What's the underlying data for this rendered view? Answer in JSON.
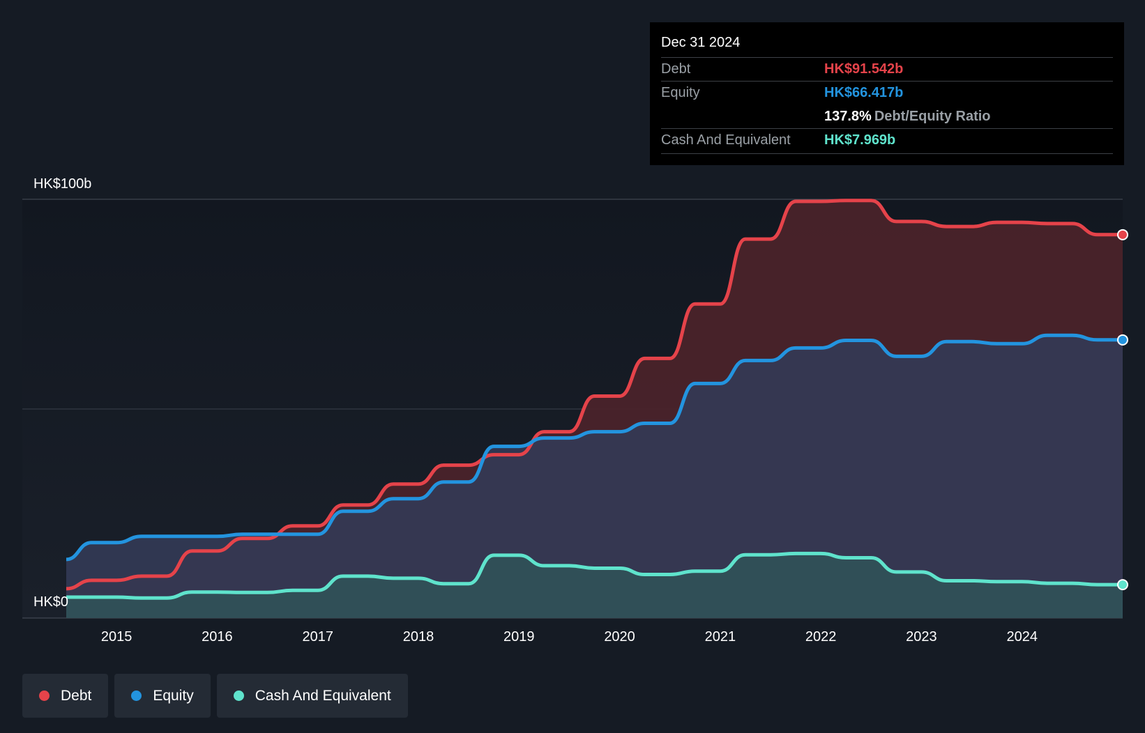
{
  "chart_data": {
    "type": "area",
    "title": "",
    "y_axis": {
      "labels": [
        "HK$0",
        "HK$100b"
      ],
      "ylim": [
        0,
        100
      ],
      "unit": "HK$b"
    },
    "x_axis": {
      "tick_labels": [
        "2015",
        "2016",
        "2017",
        "2018",
        "2019",
        "2020",
        "2021",
        "2022",
        "2023",
        "2024"
      ],
      "xlim": [
        2014.5,
        2025.0
      ]
    },
    "series": [
      {
        "name": "Debt",
        "color": "#e5434a",
        "points": [
          [
            2014.5,
            7
          ],
          [
            2014.75,
            9
          ],
          [
            2015.0,
            9
          ],
          [
            2015.25,
            10
          ],
          [
            2015.5,
            10
          ],
          [
            2015.75,
            16
          ],
          [
            2016.0,
            16
          ],
          [
            2016.25,
            19
          ],
          [
            2016.5,
            19
          ],
          [
            2016.75,
            22
          ],
          [
            2017.0,
            22
          ],
          [
            2017.25,
            27
          ],
          [
            2017.5,
            27
          ],
          [
            2017.75,
            32
          ],
          [
            2018.0,
            32
          ],
          [
            2018.25,
            36.5
          ],
          [
            2018.5,
            36.5
          ],
          [
            2018.75,
            39
          ],
          [
            2019.0,
            39
          ],
          [
            2019.25,
            44.5
          ],
          [
            2019.5,
            44.5
          ],
          [
            2019.75,
            53
          ],
          [
            2020.0,
            53
          ],
          [
            2020.25,
            62
          ],
          [
            2020.5,
            62
          ],
          [
            2020.75,
            75
          ],
          [
            2021.0,
            75
          ],
          [
            2021.25,
            90.5
          ],
          [
            2021.5,
            90.5
          ],
          [
            2021.75,
            99.5
          ],
          [
            2022.0,
            99.5
          ],
          [
            2022.25,
            99.7
          ],
          [
            2022.5,
            99.7
          ],
          [
            2022.75,
            94.7
          ],
          [
            2023.0,
            94.7
          ],
          [
            2023.25,
            93.5
          ],
          [
            2023.5,
            93.5
          ],
          [
            2023.75,
            94.5
          ],
          [
            2024.0,
            94.5
          ],
          [
            2024.25,
            94.2
          ],
          [
            2024.5,
            94.2
          ],
          [
            2024.75,
            91.542
          ],
          [
            2025.0,
            91.542
          ]
        ]
      },
      {
        "name": "Equity",
        "color": "#2394df",
        "points": [
          [
            2014.5,
            14
          ],
          [
            2014.75,
            18
          ],
          [
            2015.0,
            18
          ],
          [
            2015.25,
            19.5
          ],
          [
            2015.5,
            19.5
          ],
          [
            2015.75,
            19.5
          ],
          [
            2016.0,
            19.5
          ],
          [
            2016.25,
            20
          ],
          [
            2016.5,
            20
          ],
          [
            2016.75,
            20
          ],
          [
            2017.0,
            20
          ],
          [
            2017.25,
            25.5
          ],
          [
            2017.5,
            25.5
          ],
          [
            2017.75,
            28.5
          ],
          [
            2018.0,
            28.5
          ],
          [
            2018.25,
            32.5
          ],
          [
            2018.5,
            32.5
          ],
          [
            2018.75,
            41
          ],
          [
            2019.0,
            41
          ],
          [
            2019.25,
            43
          ],
          [
            2019.5,
            43
          ],
          [
            2019.75,
            44.5
          ],
          [
            2020.0,
            44.5
          ],
          [
            2020.25,
            46.5
          ],
          [
            2020.5,
            46.5
          ],
          [
            2020.75,
            56
          ],
          [
            2021.0,
            56
          ],
          [
            2021.25,
            61.5
          ],
          [
            2021.5,
            61.5
          ],
          [
            2021.75,
            64.5
          ],
          [
            2022.0,
            64.5
          ],
          [
            2022.25,
            66.3
          ],
          [
            2022.5,
            66.3
          ],
          [
            2022.75,
            62.5
          ],
          [
            2023.0,
            62.5
          ],
          [
            2023.25,
            66
          ],
          [
            2023.5,
            66
          ],
          [
            2023.75,
            65.5
          ],
          [
            2024.0,
            65.5
          ],
          [
            2024.25,
            67.5
          ],
          [
            2024.5,
            67.5
          ],
          [
            2024.75,
            66.417
          ],
          [
            2025.0,
            66.417
          ]
        ]
      },
      {
        "name": "Cash And Equivalent",
        "color": "#5fe3cc",
        "points": [
          [
            2014.5,
            5
          ],
          [
            2014.75,
            5
          ],
          [
            2015.0,
            5
          ],
          [
            2015.25,
            4.8
          ],
          [
            2015.5,
            4.8
          ],
          [
            2015.75,
            6.2
          ],
          [
            2016.0,
            6.2
          ],
          [
            2016.25,
            6.1
          ],
          [
            2016.5,
            6.1
          ],
          [
            2016.75,
            6.6
          ],
          [
            2017.0,
            6.6
          ],
          [
            2017.25,
            10
          ],
          [
            2017.5,
            10
          ],
          [
            2017.75,
            9.5
          ],
          [
            2018.0,
            9.5
          ],
          [
            2018.25,
            8.2
          ],
          [
            2018.5,
            8.2
          ],
          [
            2018.75,
            15
          ],
          [
            2019.0,
            15
          ],
          [
            2019.25,
            12.5
          ],
          [
            2019.5,
            12.5
          ],
          [
            2019.75,
            11.9
          ],
          [
            2020.0,
            11.9
          ],
          [
            2020.25,
            10.4
          ],
          [
            2020.5,
            10.4
          ],
          [
            2020.75,
            11.2
          ],
          [
            2021.0,
            11.2
          ],
          [
            2021.25,
            15.1
          ],
          [
            2021.5,
            15.1
          ],
          [
            2021.75,
            15.4
          ],
          [
            2022.0,
            15.4
          ],
          [
            2022.25,
            14.4
          ],
          [
            2022.5,
            14.4
          ],
          [
            2022.75,
            11
          ],
          [
            2023.0,
            11
          ],
          [
            2023.25,
            8.9
          ],
          [
            2023.5,
            8.9
          ],
          [
            2023.75,
            8.7
          ],
          [
            2024.0,
            8.7
          ],
          [
            2024.25,
            8.3
          ],
          [
            2024.5,
            8.3
          ],
          [
            2024.75,
            7.969
          ],
          [
            2025.0,
            7.969
          ]
        ]
      }
    ]
  },
  "tooltip": {
    "date": "Dec 31 2024",
    "debt_label": "Debt",
    "debt_value": "HK$91.542b",
    "equity_label": "Equity",
    "equity_value": "HK$66.417b",
    "ratio_value": "137.8%",
    "ratio_label": "Debt/Equity Ratio",
    "cash_label": "Cash And Equivalent",
    "cash_value": "HK$7.969b"
  },
  "legend": [
    {
      "label": "Debt",
      "color": "#e5434a"
    },
    {
      "label": "Equity",
      "color": "#2394df"
    },
    {
      "label": "Cash And Equivalent",
      "color": "#5fe3cc"
    }
  ]
}
